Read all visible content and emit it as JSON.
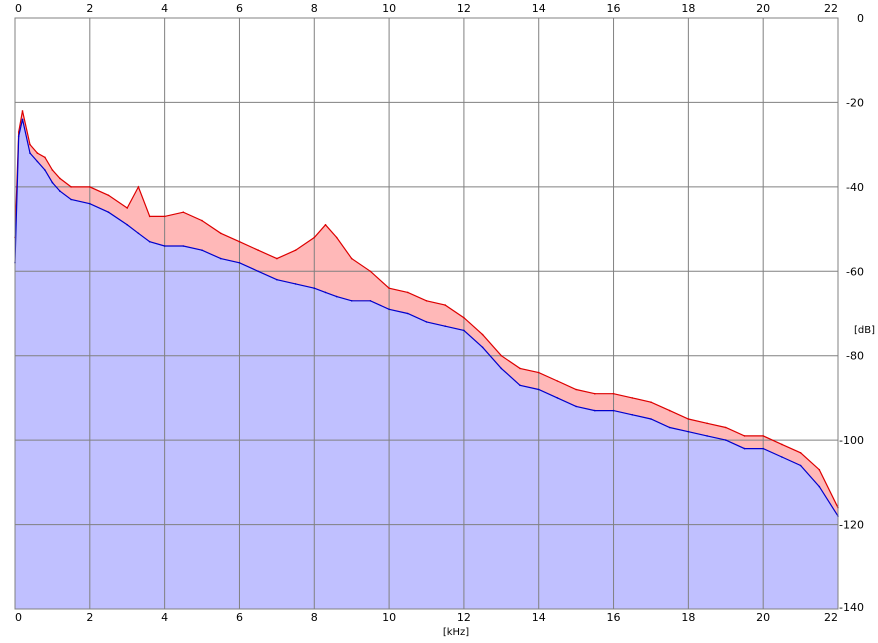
{
  "chart_data": {
    "type": "area",
    "xlabel": "[kHz]",
    "ylabel": "[dB]",
    "xlim": [
      0,
      22
    ],
    "ylim": [
      -140,
      0
    ],
    "x_ticks": [
      "0",
      "2",
      "4",
      "6",
      "8",
      "10",
      "12",
      "14",
      "16",
      "18",
      "20",
      "22"
    ],
    "y_ticks": [
      "0",
      "-20",
      "-40",
      "-60",
      "-80",
      "-100",
      "-120",
      "-140"
    ],
    "grid": true,
    "series": [
      {
        "color": "#dd0000",
        "fill": "#ffb8b8",
        "x": [
          0,
          0.1,
          0.2,
          0.4,
          0.6,
          0.8,
          1.0,
          1.2,
          1.5,
          2.0,
          2.5,
          3.0,
          3.3,
          3.6,
          4.0,
          4.5,
          5.0,
          5.5,
          6.0,
          6.5,
          7.0,
          7.5,
          8.0,
          8.3,
          8.6,
          9.0,
          9.5,
          10.0,
          10.5,
          11.0,
          11.5,
          12.0,
          12.5,
          13.0,
          13.5,
          14.0,
          14.5,
          15.0,
          15.5,
          16.0,
          16.5,
          17.0,
          17.5,
          18.0,
          18.5,
          19.0,
          19.5,
          20.0,
          20.5,
          21.0,
          21.5,
          22.0
        ],
        "values": [
          -52,
          -27,
          -22,
          -30,
          -32,
          -33,
          -36,
          -38,
          -40,
          -40,
          -42,
          -45,
          -40,
          -47,
          -47,
          -46,
          -48,
          -51,
          -53,
          -55,
          -57,
          -55,
          -52,
          -49,
          -52,
          -57,
          -60,
          -64,
          -65,
          -67,
          -68,
          -71,
          -75,
          -80,
          -83,
          -84,
          -86,
          -88,
          -89,
          -89,
          -90,
          -91,
          -93,
          -95,
          -96,
          -97,
          -99,
          -99,
          -101,
          -103,
          -107,
          -116
        ]
      },
      {
        "color": "#0000cc",
        "fill": "#c0c0ff",
        "x": [
          0,
          0.1,
          0.2,
          0.4,
          0.6,
          0.8,
          1.0,
          1.2,
          1.5,
          2.0,
          2.5,
          3.0,
          3.3,
          3.6,
          4.0,
          4.5,
          5.0,
          5.5,
          6.0,
          6.5,
          7.0,
          7.5,
          8.0,
          8.3,
          8.6,
          9.0,
          9.5,
          10.0,
          10.5,
          11.0,
          11.5,
          12.0,
          12.5,
          13.0,
          13.5,
          14.0,
          14.5,
          15.0,
          15.5,
          16.0,
          16.5,
          17.0,
          17.5,
          18.0,
          18.5,
          19.0,
          19.5,
          20.0,
          20.5,
          21.0,
          21.5,
          22.0
        ],
        "values": [
          -58,
          -28,
          -24,
          -32,
          -34,
          -36,
          -39,
          -41,
          -43,
          -44,
          -46,
          -49,
          -51,
          -53,
          -54,
          -54,
          -55,
          -57,
          -58,
          -60,
          -62,
          -63,
          -64,
          -65,
          -66,
          -67,
          -67,
          -69,
          -70,
          -72,
          -73,
          -74,
          -78,
          -83,
          -87,
          -88,
          -90,
          -92,
          -93,
          -93,
          -94,
          -95,
          -97,
          -98,
          -99,
          -100,
          -102,
          -102,
          -104,
          -106,
          -111,
          -118
        ]
      }
    ]
  }
}
